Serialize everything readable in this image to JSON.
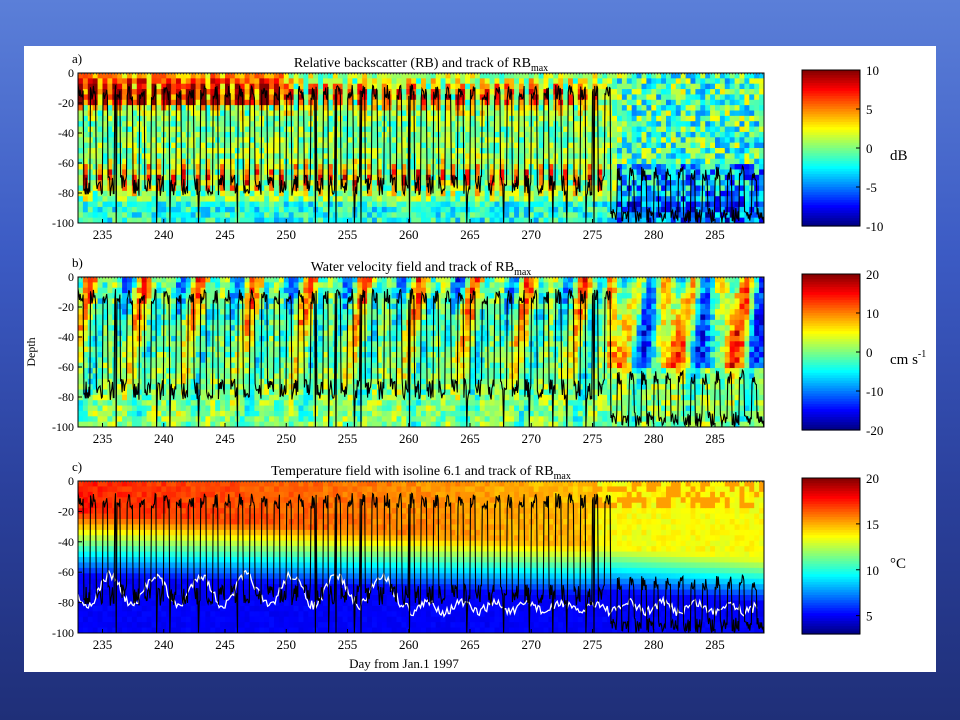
{
  "figure": {
    "xlabel": "Day from Jan.1 1997",
    "ylabel": "Depth"
  },
  "chart_data": [
    {
      "type": "heatmap",
      "id": "a",
      "panel_letter": "a)",
      "title": "Relative backscatter (RB)  and  track of  RB",
      "title_sub": "max",
      "x_ticks": [
        235,
        240,
        245,
        250,
        255,
        260,
        265,
        270,
        275,
        280,
        285
      ],
      "xlim": [
        233,
        289
      ],
      "y_ticks": [
        0,
        -20,
        -40,
        -60,
        -80,
        -100
      ],
      "ylim": [
        -100,
        0
      ],
      "colorbar": {
        "ticks": [
          10,
          5,
          0,
          -5,
          -10
        ],
        "range": [
          -10,
          10
        ],
        "unit": "dB",
        "unit_sup": ""
      },
      "track_color": "#000000"
    },
    {
      "type": "heatmap",
      "id": "b",
      "panel_letter": "b)",
      "title": "Water velocity field and track of RB",
      "title_sub": "max",
      "x_ticks": [
        235,
        240,
        245,
        250,
        255,
        260,
        265,
        270,
        275,
        280,
        285
      ],
      "xlim": [
        233,
        289
      ],
      "y_ticks": [
        0,
        -20,
        -40,
        -60,
        -80,
        -100
      ],
      "ylim": [
        -100,
        0
      ],
      "colorbar": {
        "ticks": [
          20,
          10,
          0,
          -10,
          -20
        ],
        "range": [
          -20,
          20
        ],
        "unit": "cm s",
        "unit_sup": "-1"
      },
      "track_color": "#000000"
    },
    {
      "type": "heatmap",
      "id": "c",
      "panel_letter": "c)",
      "title": "Temperature field with isoline 6.1  and  track of RB",
      "title_sub": "max",
      "x_ticks": [
        235,
        240,
        245,
        250,
        255,
        260,
        265,
        270,
        275,
        280,
        285
      ],
      "xlim": [
        233,
        289
      ],
      "y_ticks": [
        0,
        -20,
        -40,
        -60,
        -80,
        -100
      ],
      "ylim": [
        -100,
        0
      ],
      "colorbar": {
        "ticks": [
          20,
          15,
          10,
          5
        ],
        "range": [
          3,
          20
        ],
        "unit": "°C",
        "unit_sup": ""
      },
      "track_color": "#000000",
      "isoline": {
        "value": 6.1,
        "color": "#ffffff"
      }
    }
  ],
  "colors": {
    "slide_top": "#5b7fd8",
    "slide_bottom": "#1f2f78",
    "panel_bg": "#ffffff"
  }
}
